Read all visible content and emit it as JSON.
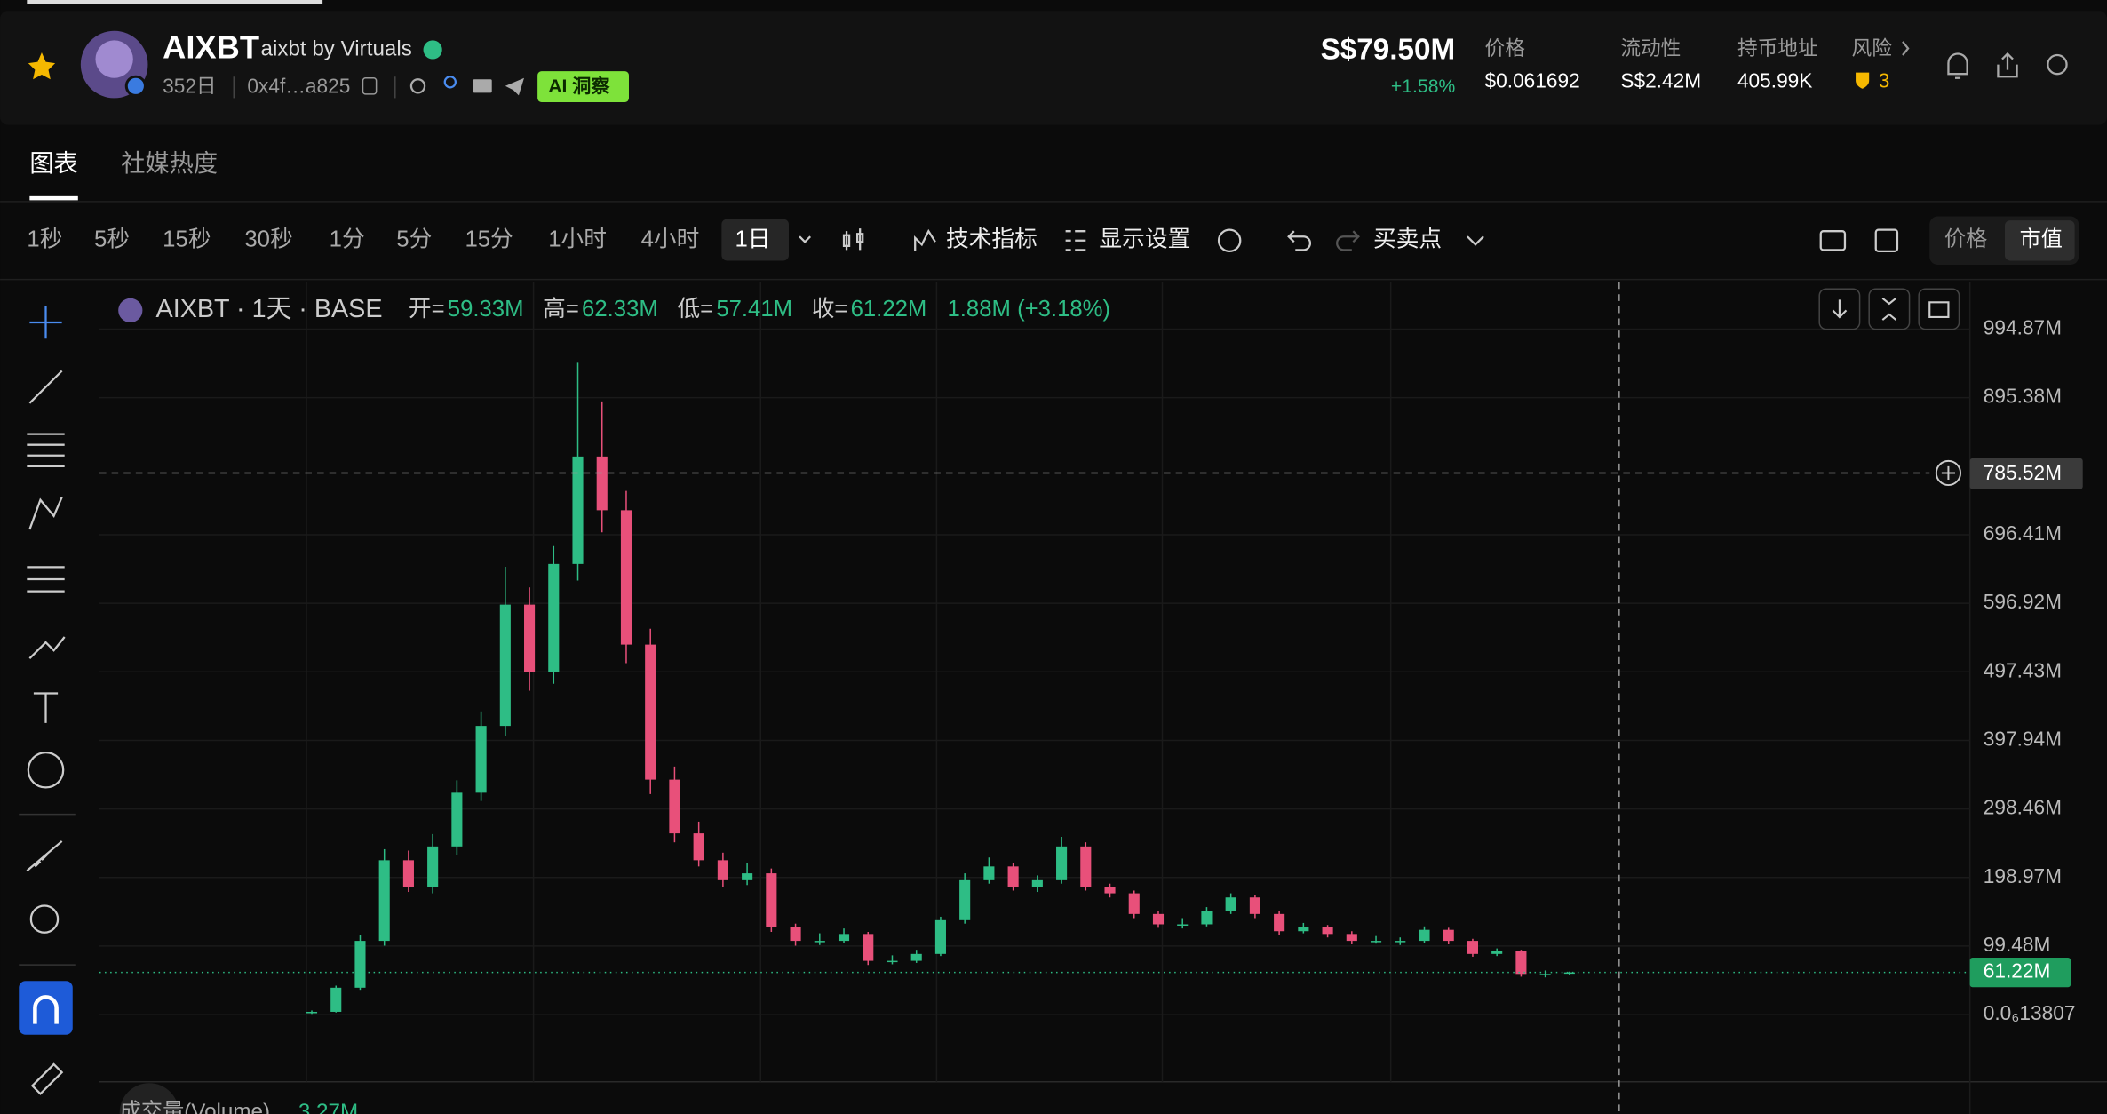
{
  "header": {
    "name": "AIXBT",
    "subtitle": "aixbt by Virtuals",
    "age": "352日",
    "address": "0x4f…a825",
    "ai_badge": "AI 洞察",
    "market_cap": "S$79.50M",
    "change": "+1.58%",
    "stats": [
      {
        "label": "价格",
        "value": "$0.061692"
      },
      {
        "label": "流动性",
        "value": "S$2.42M"
      },
      {
        "label": "持币地址",
        "value": "405.99K"
      },
      {
        "label": "风险",
        "value": "3"
      }
    ]
  },
  "tabs": [
    "图表",
    "社媒热度"
  ],
  "toolbar": {
    "intervals": [
      "1秒",
      "5秒",
      "15秒",
      "30秒",
      "1分",
      "5分",
      "15分",
      "1小时",
      "4小时",
      "1日"
    ],
    "indicators": "技术指标",
    "display": "显示设置",
    "trade_points": "买卖点",
    "modes": [
      "价格",
      "市值"
    ]
  },
  "chart_data": {
    "type": "candlestick",
    "legend": {
      "symbol": "AIXBT · 1天 · BASE",
      "open_label": "开=",
      "open": "59.33M",
      "high_label": "高=",
      "high": "62.33M",
      "low_label": "低=",
      "low": "57.41M",
      "close_label": "收=",
      "close": "61.22M",
      "change": "1.88M (+3.18%)"
    },
    "open": [
      2,
      4,
      39,
      107,
      224,
      185,
      244,
      322,
      419,
      595,
      497,
      654,
      810,
      732,
      537,
      341,
      263,
      224,
      195,
      205,
      127,
      107,
      107,
      117,
      78,
      78,
      88,
      137,
      195,
      215,
      185,
      195,
      244,
      185,
      176,
      146,
      131,
      131,
      150,
      170,
      146,
      121,
      127,
      117,
      107,
      107,
      107,
      123,
      107,
      88,
      92,
      59,
      59.33
    ],
    "high": [
      6,
      42,
      115,
      240,
      238,
      262,
      340,
      440,
      650,
      620,
      680,
      946,
      890,
      760,
      560,
      360,
      280,
      235,
      220,
      212,
      132,
      118,
      125,
      120,
      86,
      94,
      142,
      205,
      228,
      220,
      202,
      258,
      250,
      190,
      180,
      150,
      140,
      156,
      176,
      174,
      150,
      133,
      130,
      121,
      114,
      112,
      128,
      126,
      110,
      96,
      94,
      64,
      62.33
    ],
    "low": [
      1,
      3,
      36,
      100,
      178,
      176,
      232,
      310,
      405,
      470,
      480,
      630,
      700,
      510,
      320,
      250,
      215,
      185,
      188,
      120,
      100,
      101,
      104,
      72,
      73,
      75,
      85,
      132,
      190,
      180,
      178,
      190,
      180,
      170,
      140,
      126,
      125,
      128,
      146,
      140,
      116,
      118,
      112,
      102,
      103,
      101,
      104,
      102,
      84,
      85,
      55,
      54,
      57.41
    ],
    "close": [
      4,
      39,
      107,
      224,
      185,
      244,
      322,
      419,
      595,
      497,
      654,
      810,
      732,
      537,
      341,
      263,
      224,
      195,
      205,
      127,
      107,
      107,
      117,
      78,
      78,
      88,
      137,
      195,
      215,
      185,
      195,
      244,
      185,
      176,
      146,
      131,
      131,
      150,
      170,
      146,
      121,
      127,
      117,
      107,
      107,
      107,
      123,
      107,
      88,
      92,
      59,
      59,
      61.22
    ],
    "up_color": "#2ebd85",
    "down_color": "#e8507a",
    "ylim": [
      -97.5,
      1063
    ],
    "yticks": [
      {
        "value": 994.87,
        "label": "994.87M"
      },
      {
        "value": 895.38,
        "label": "895.38M"
      },
      {
        "value": 696.41,
        "label": "696.41M"
      },
      {
        "value": 596.92,
        "label": "596.92M"
      },
      {
        "value": 497.43,
        "label": "497.43M"
      },
      {
        "value": 397.94,
        "label": "397.94M"
      },
      {
        "value": 298.46,
        "label": "298.46M"
      },
      {
        "value": 198.97,
        "label": "198.97M"
      },
      {
        "value": 99.48,
        "label": "99.48M"
      },
      {
        "value": 1.3807e-07,
        "label": "0.0₆13807"
      }
    ],
    "grid": true,
    "crosshair_label": "785.52M",
    "last_label": "61.22M",
    "volume_label": "成交量(Volume)",
    "volume_value": "3.27M"
  }
}
